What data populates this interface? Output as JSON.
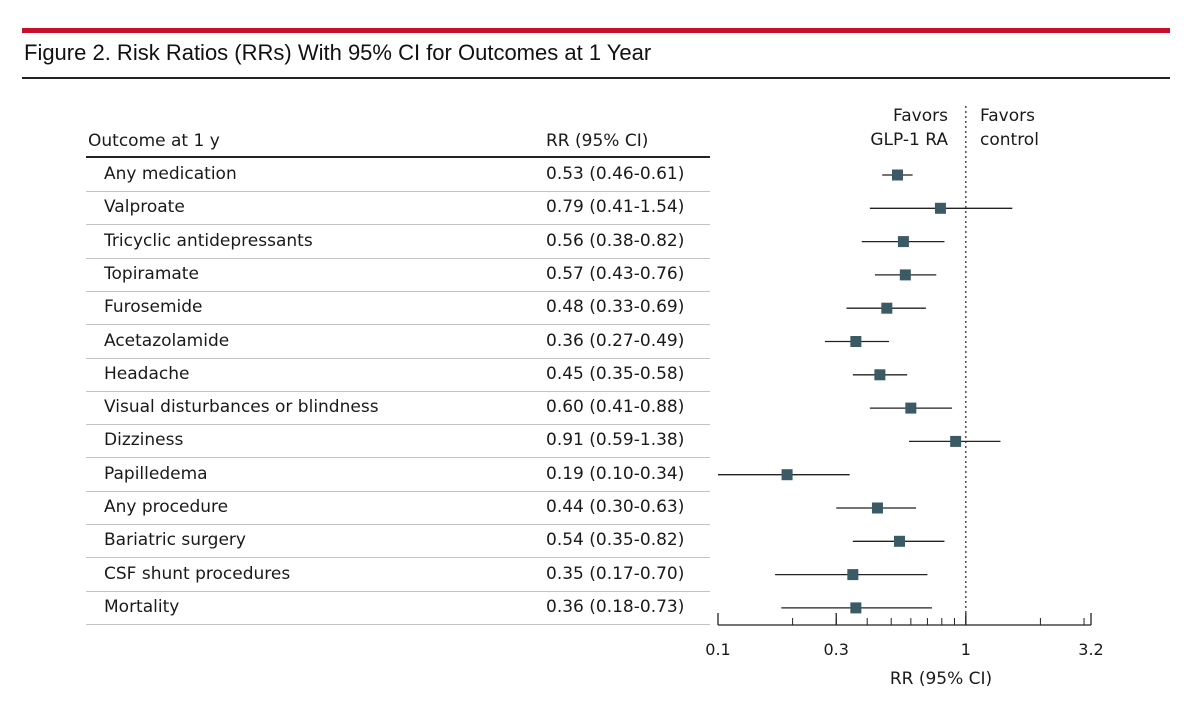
{
  "figure_title": "Figure 2. Risk Ratios (RRs) With 95% CI for Outcomes at 1 Year",
  "colors": {
    "accent_bar": "#c8102e",
    "marker": "#3c5a66",
    "line": "#222222"
  },
  "table": {
    "outcome_header": "Outcome at 1 y",
    "rr_header": "RR (95% CI)"
  },
  "favors": {
    "left_line1": "Favors",
    "left_line2": "GLP-1 RA",
    "right_line1": "Favors",
    "right_line2": "control"
  },
  "chart_data": {
    "type": "forest",
    "title": "Figure 2. Risk Ratios (RRs) With 95% CI for Outcomes at 1 Year",
    "xlabel": "RR (95% CI)",
    "xscale": "log",
    "xlim": [
      0.1,
      3.2
    ],
    "xticks": [
      0.1,
      0.3,
      1,
      3.2
    ],
    "xtick_labels": [
      "0.1",
      "0.3",
      "1",
      "3.2"
    ],
    "reference_line": 1,
    "rows": [
      {
        "label": "Any medication",
        "text": "0.53 (0.46-0.61)",
        "rr": 0.53,
        "lo": 0.46,
        "hi": 0.61
      },
      {
        "label": "Valproate",
        "text": "0.79 (0.41-1.54)",
        "rr": 0.79,
        "lo": 0.41,
        "hi": 1.54
      },
      {
        "label": "Tricyclic antidepressants",
        "text": "0.56 (0.38-0.82)",
        "rr": 0.56,
        "lo": 0.38,
        "hi": 0.82
      },
      {
        "label": "Topiramate",
        "text": "0.57 (0.43-0.76)",
        "rr": 0.57,
        "lo": 0.43,
        "hi": 0.76
      },
      {
        "label": "Furosemide",
        "text": "0.48 (0.33-0.69)",
        "rr": 0.48,
        "lo": 0.33,
        "hi": 0.69
      },
      {
        "label": "Acetazolamide",
        "text": "0.36 (0.27-0.49)",
        "rr": 0.36,
        "lo": 0.27,
        "hi": 0.49
      },
      {
        "label": "Headache",
        "text": "0.45 (0.35-0.58)",
        "rr": 0.45,
        "lo": 0.35,
        "hi": 0.58
      },
      {
        "label": "Visual disturbances or blindness",
        "text": "0.60 (0.41-0.88)",
        "rr": 0.6,
        "lo": 0.41,
        "hi": 0.88
      },
      {
        "label": "Dizziness",
        "text": "0.91 (0.59-1.38)",
        "rr": 0.91,
        "lo": 0.59,
        "hi": 1.38
      },
      {
        "label": "Papilledema",
        "text": "0.19 (0.10-0.34)",
        "rr": 0.19,
        "lo": 0.1,
        "hi": 0.34
      },
      {
        "label": "Any procedure",
        "text": "0.44 (0.30-0.63)",
        "rr": 0.44,
        "lo": 0.3,
        "hi": 0.63
      },
      {
        "label": "Bariatric surgery",
        "text": "0.54 (0.35-0.82)",
        "rr": 0.54,
        "lo": 0.35,
        "hi": 0.82
      },
      {
        "label": "CSF shunt procedures",
        "text": "0.35 (0.17-0.70)",
        "rr": 0.35,
        "lo": 0.17,
        "hi": 0.7
      },
      {
        "label": "Mortality",
        "text": "0.36 (0.18-0.73)",
        "rr": 0.36,
        "lo": 0.18,
        "hi": 0.73
      }
    ]
  }
}
